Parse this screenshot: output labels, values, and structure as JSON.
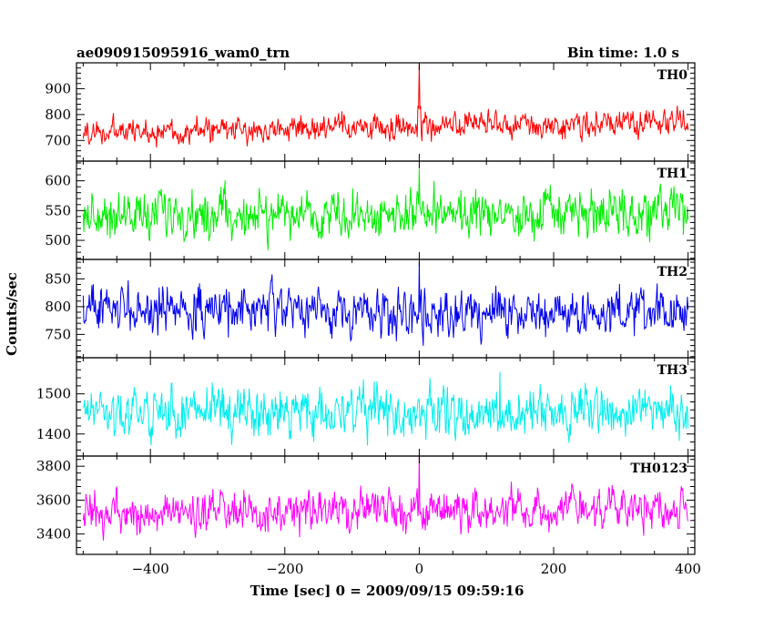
{
  "header": {
    "title": "ae090915095916_wam0_trn",
    "bin_time": "Bin time: 1.0 s"
  },
  "chart_data": {
    "type": "line",
    "title": "ae090915095916_wam0_trn",
    "xlabel": "Time [sec] 0 = 2009/09/15 09:59:16",
    "ylabel": "Counts/sec",
    "xlim": [
      -510,
      410
    ],
    "x_ticks": [
      -400,
      -200,
      0,
      200,
      400
    ],
    "x_tick_labels": [
      "−400",
      "−200",
      "0",
      "200",
      "400"
    ],
    "x_range": [
      -500,
      400
    ],
    "bin_time_s": 1.0,
    "panels": [
      {
        "name": "TH0",
        "color": "#ff0000",
        "ylim": [
          620,
          1000
        ],
        "y_ticks": [
          700,
          800,
          900
        ],
        "mean": 730,
        "trend": 0.045,
        "noise": 36,
        "spike": {
          "x": 0,
          "peak": 1000
        }
      },
      {
        "name": "TH1",
        "color": "#00ee00",
        "ylim": [
          468,
          633
        ],
        "y_ticks": [
          500,
          550,
          600
        ],
        "mean": 543,
        "trend": 0,
        "noise": 28,
        "spike": {
          "x": 0,
          "peak": 620
        }
      },
      {
        "name": "TH2",
        "color": "#0000ee",
        "ylim": [
          708,
          885
        ],
        "y_ticks": [
          750,
          800,
          850
        ],
        "mean": 796,
        "trend": -0.01,
        "noise": 30,
        "spike": {
          "x": 0,
          "peak": 880
        }
      },
      {
        "name": "TH3",
        "color": "#00eeee",
        "ylim": [
          1345,
          1590
        ],
        "y_ticks": [
          1400,
          1500
        ],
        "mean": 1455,
        "trend": 0,
        "noise": 42,
        "spike": {
          "x": 120,
          "peak": 1555
        }
      },
      {
        "name": "TH0123",
        "color": "#ff00ff",
        "ylim": [
          3280,
          3860
        ],
        "y_ticks": [
          3400,
          3600,
          3800
        ],
        "mean": 3512,
        "trend": 0.05,
        "noise": 85,
        "spike": {
          "x": 0,
          "peak": 3860
        }
      }
    ]
  }
}
